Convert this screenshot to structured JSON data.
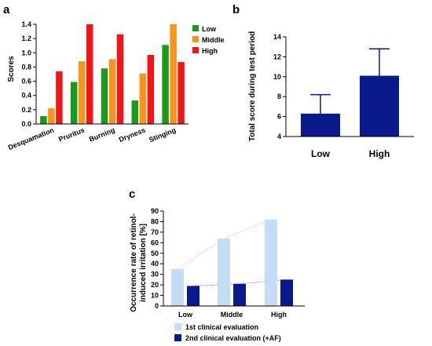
{
  "chart_data": [
    {
      "panel": "a",
      "type": "bar",
      "ylabel": "Scores",
      "ylim": [
        0,
        1.4
      ],
      "yticks": [
        "0.0",
        "0.2",
        "0.4",
        "0.6",
        "0.8",
        "1.0",
        "1.2",
        "1.4"
      ],
      "categories": [
        "Desquamation",
        "Pruritus",
        "Burning",
        "Dryness",
        "Stinging"
      ],
      "legend_position": "top-right",
      "series": [
        {
          "name": "Low",
          "color": "#1a9a1a",
          "values": [
            0.11,
            0.59,
            0.78,
            0.33,
            1.11
          ]
        },
        {
          "name": "Middle",
          "color": "#f7941d",
          "values": [
            0.22,
            0.88,
            0.91,
            0.71,
            1.4
          ]
        },
        {
          "name": "High",
          "color": "#f21515",
          "values": [
            0.74,
            1.4,
            1.26,
            0.97,
            0.87
          ]
        }
      ]
    },
    {
      "panel": "b",
      "type": "bar",
      "ylabel": "Total score during test period",
      "ylim": [
        4,
        14
      ],
      "yticks": [
        "4",
        "6",
        "8",
        "10",
        "12",
        "14"
      ],
      "categories": [
        "Low",
        "High"
      ],
      "series": [
        {
          "color": "#0a1a8c",
          "values": [
            6.3,
            10.1
          ],
          "error": [
            1.9,
            2.7
          ]
        }
      ]
    },
    {
      "panel": "c",
      "type": "bar",
      "ylabel": "Occurrence rate of retinol-induced irritation [%]",
      "ylabel_lines": [
        "Occurrence rate of retinol-",
        "induced irritation [%]"
      ],
      "ylim": [
        0,
        90
      ],
      "yticks": [
        "0",
        "10",
        "20",
        "30",
        "40",
        "50",
        "60",
        "70",
        "80",
        "90"
      ],
      "categories": [
        "Low",
        "Middle",
        "High"
      ],
      "legend_position": "bottom",
      "series": [
        {
          "name": "1st clinical  evaluation",
          "color": "#c5dcf6",
          "values": [
            35,
            64,
            82
          ]
        },
        {
          "name": "2nd clinical  evaluation  (+AF)",
          "color": "#0a1a8c",
          "values": [
            19,
            21,
            25
          ]
        }
      ]
    }
  ]
}
